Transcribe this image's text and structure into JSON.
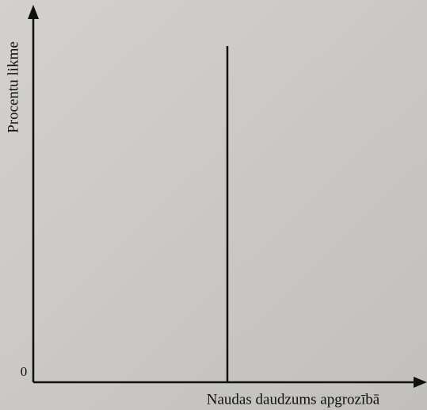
{
  "axes": {
    "y_label": "Procentu likme",
    "x_label": "Naudas daudzums apgrozībā",
    "origin": "0"
  }
}
